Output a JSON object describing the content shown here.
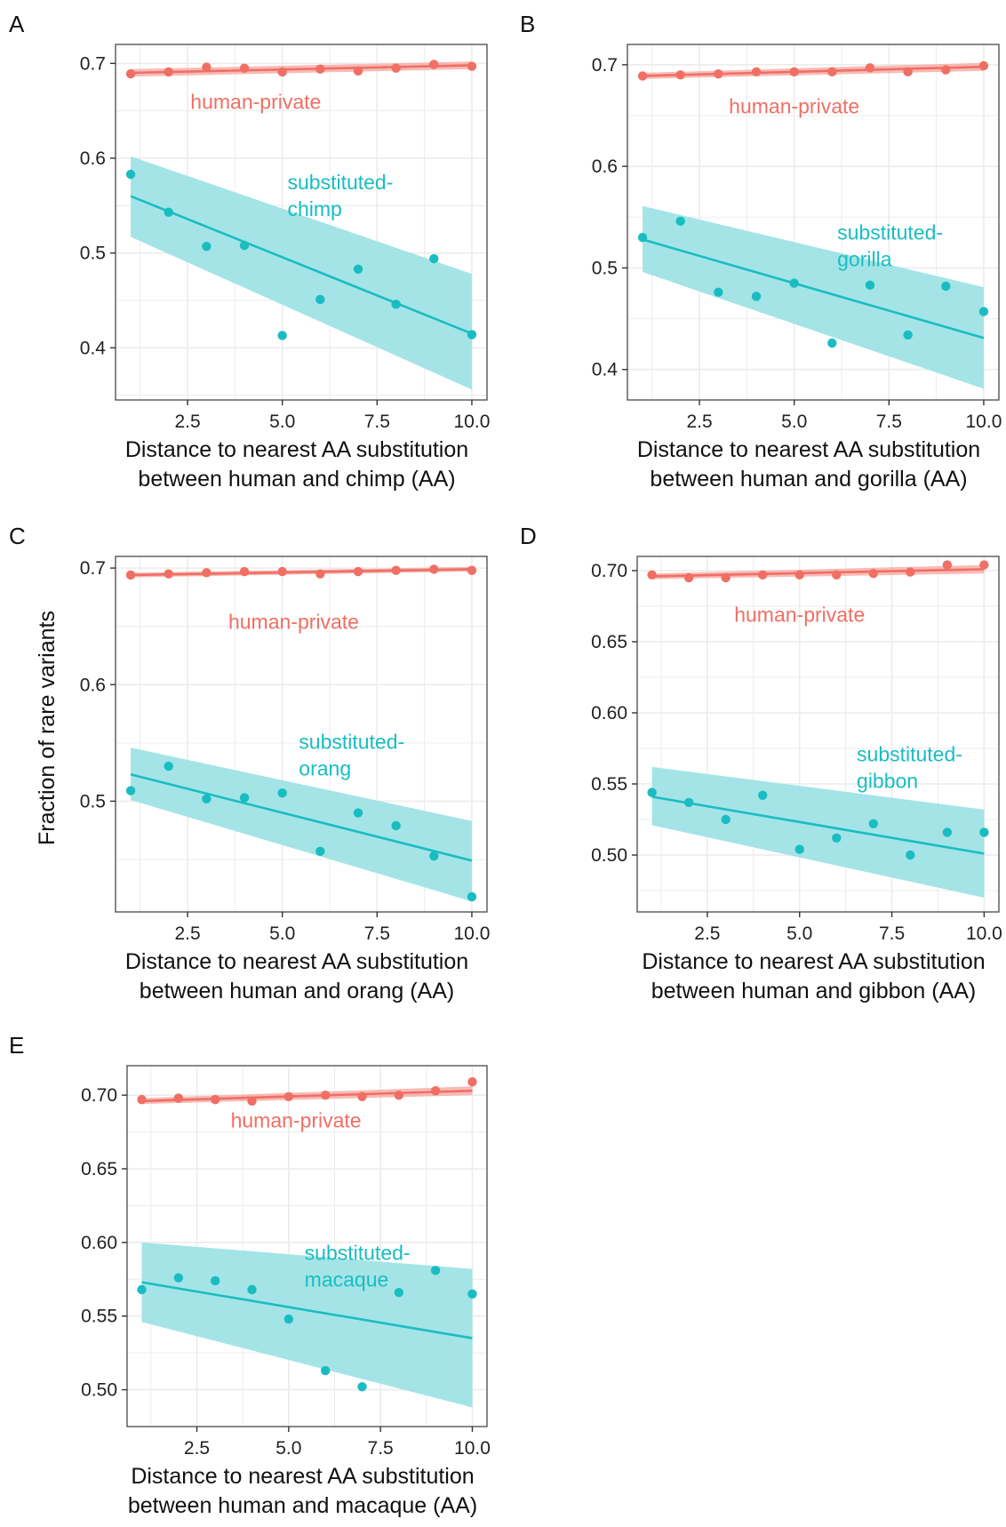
{
  "colors": {
    "human_private": "#f06f64",
    "substituted": "#19bdc1",
    "band_hp": "#f6aaa4",
    "band_sub": "#9fe3e6",
    "grid": "#ececec",
    "frame": "#555555"
  },
  "ylabel": "Fraction of rare variants",
  "chart_data": [
    {
      "panel": "A",
      "type": "scatter",
      "xlabel": [
        "Distance to nearest AA substitution",
        "between human and chimp (AA)"
      ],
      "xlim": [
        0.6,
        10.4
      ],
      "ylim": [
        0.345,
        0.72
      ],
      "xticks": [
        2.5,
        5.0,
        7.5,
        10.0
      ],
      "xtick_labels": [
        "2.5",
        "5.0",
        "7.5",
        "10.0"
      ],
      "yticks": [
        0.4,
        0.5,
        0.6,
        0.7
      ],
      "ytick_labels": [
        "0.4",
        "0.5",
        "0.6",
        "0.7"
      ],
      "x": [
        1,
        2,
        3,
        4,
        5,
        6,
        7,
        8,
        9,
        10
      ],
      "series": [
        {
          "name": "human-private",
          "label_lines": [
            "human-private"
          ],
          "label_anchor": [
            4.3,
            0.652
          ],
          "values": [
            0.689,
            0.691,
            0.696,
            0.695,
            0.691,
            0.694,
            0.692,
            0.695,
            0.699,
            0.697
          ],
          "fit": [
            0.69,
            0.698
          ],
          "band": [
            [
              0.686,
              0.694
            ],
            [
              0.694,
              0.702
            ]
          ]
        },
        {
          "name": "substituted-chimp",
          "label_lines": [
            "substituted-",
            "chimp"
          ],
          "label_anchor": [
            8.4,
            0.567
          ],
          "values": [
            0.583,
            0.543,
            0.507,
            0.508,
            0.413,
            0.451,
            0.483,
            0.446,
            0.494,
            0.414
          ],
          "fit": [
            0.56,
            0.415
          ],
          "band": [
            [
              0.517,
              0.602
            ],
            [
              0.356,
              0.478
            ]
          ]
        }
      ]
    },
    {
      "panel": "B",
      "type": "scatter",
      "xlabel": [
        "Distance to nearest AA substitution",
        "between human and gorilla (AA)"
      ],
      "xlim": [
        0.6,
        10.4
      ],
      "ylim": [
        0.37,
        0.72
      ],
      "xticks": [
        2.5,
        5.0,
        7.5,
        10.0
      ],
      "xtick_labels": [
        "2.5",
        "5.0",
        "7.5",
        "10.0"
      ],
      "yticks": [
        0.4,
        0.5,
        0.6,
        0.7
      ],
      "ytick_labels": [
        "0.4",
        "0.5",
        "0.6",
        "0.7"
      ],
      "x": [
        1,
        2,
        3,
        4,
        5,
        6,
        7,
        8,
        9,
        10
      ],
      "series": [
        {
          "name": "human-private",
          "label_lines": [
            "human-private"
          ],
          "label_anchor": [
            5.0,
            0.652
          ],
          "values": [
            0.689,
            0.69,
            0.691,
            0.693,
            0.693,
            0.693,
            0.697,
            0.693,
            0.695,
            0.699
          ],
          "fit": [
            0.689,
            0.698
          ],
          "band": [
            [
              0.686,
              0.692
            ],
            [
              0.694,
              0.702
            ]
          ]
        },
        {
          "name": "substituted-gorilla",
          "label_lines": [
            "substituted-",
            "gorilla"
          ],
          "label_anchor": [
            9.4,
            0.528
          ],
          "values": [
            0.53,
            0.546,
            0.476,
            0.472,
            0.485,
            0.426,
            0.483,
            0.434,
            0.482,
            0.457
          ],
          "fit": [
            0.528,
            0.431
          ],
          "band": [
            [
              0.496,
              0.561
            ],
            [
              0.381,
              0.481
            ]
          ]
        }
      ]
    },
    {
      "panel": "C",
      "type": "scatter",
      "xlabel": [
        "Distance to nearest AA substitution",
        "between human and orang (AA)"
      ],
      "xlim": [
        0.6,
        10.4
      ],
      "ylim": [
        0.405,
        0.71
      ],
      "xticks": [
        2.5,
        5.0,
        7.5,
        10.0
      ],
      "xtick_labels": [
        "2.5",
        "5.0",
        "7.5",
        "10.0"
      ],
      "yticks": [
        0.5,
        0.6,
        0.7
      ],
      "ytick_labels": [
        "0.5",
        "0.6",
        "0.7"
      ],
      "x": [
        1,
        2,
        3,
        4,
        5,
        6,
        7,
        8,
        9,
        10
      ],
      "series": [
        {
          "name": "human-private",
          "label_lines": [
            "human-private"
          ],
          "label_anchor": [
            5.3,
            0.648
          ],
          "values": [
            0.694,
            0.695,
            0.696,
            0.697,
            0.697,
            0.695,
            0.697,
            0.698,
            0.699,
            0.698
          ],
          "fit": [
            0.694,
            0.699
          ],
          "band": [
            [
              0.692,
              0.696
            ],
            [
              0.697,
              0.701
            ]
          ]
        },
        {
          "name": "substituted-orang",
          "label_lines": [
            "substituted-",
            "orang"
          ],
          "label_anchor": [
            8.7,
            0.545
          ],
          "values": [
            0.509,
            0.53,
            0.502,
            0.503,
            0.507,
            0.457,
            0.49,
            0.479,
            0.453,
            0.418
          ],
          "fit": [
            0.523,
            0.449
          ],
          "band": [
            [
              0.501,
              0.546
            ],
            [
              0.414,
              0.483
            ]
          ]
        }
      ]
    },
    {
      "panel": "D",
      "type": "scatter",
      "xlabel": [
        "Distance to nearest AA substitution",
        "between human and gibbon (AA)"
      ],
      "xlim": [
        0.6,
        10.4
      ],
      "ylim": [
        0.46,
        0.71
      ],
      "xticks": [
        2.5,
        5.0,
        7.5,
        10.0
      ],
      "xtick_labels": [
        "2.5",
        "5.0",
        "7.5",
        "10.0"
      ],
      "yticks": [
        0.5,
        0.55,
        0.6,
        0.65,
        0.7
      ],
      "ytick_labels": [
        "0.50",
        "0.55",
        "0.60",
        "0.65",
        "0.70"
      ],
      "x": [
        1,
        2,
        3,
        4,
        5,
        6,
        7,
        8,
        9,
        10
      ],
      "series": [
        {
          "name": "human-private",
          "label_lines": [
            "human-private"
          ],
          "label_anchor": [
            5.0,
            0.664
          ],
          "values": [
            0.697,
            0.695,
            0.695,
            0.697,
            0.697,
            0.697,
            0.698,
            0.699,
            0.704,
            0.704
          ],
          "fit": [
            0.696,
            0.701
          ],
          "band": [
            [
              0.694,
              0.698
            ],
            [
              0.698,
              0.704
            ]
          ]
        },
        {
          "name": "substituted-gibbon",
          "label_lines": [
            "substituted-",
            "gibbon"
          ],
          "label_anchor": [
            9.9,
            0.566
          ],
          "values": [
            0.544,
            0.537,
            0.525,
            0.542,
            0.504,
            0.512,
            0.522,
            0.5,
            0.516,
            0.516
          ],
          "fit": [
            0.541,
            0.501
          ],
          "band": [
            [
              0.521,
              0.562
            ],
            [
              0.47,
              0.532
            ]
          ]
        }
      ]
    },
    {
      "panel": "E",
      "type": "scatter",
      "xlabel": [
        "Distance to nearest AA substitution",
        "between human and macaque (AA)"
      ],
      "xlim": [
        0.6,
        10.4
      ],
      "ylim": [
        0.475,
        0.72
      ],
      "xticks": [
        2.5,
        5.0,
        7.5,
        10.0
      ],
      "xtick_labels": [
        "2.5",
        "5.0",
        "7.5",
        "10.0"
      ],
      "yticks": [
        0.5,
        0.55,
        0.6,
        0.65,
        0.7
      ],
      "ytick_labels": [
        "0.50",
        "0.55",
        "0.60",
        "0.65",
        "0.70"
      ],
      "x": [
        1,
        2,
        3,
        4,
        5,
        6,
        7,
        8,
        9,
        10
      ],
      "series": [
        {
          "name": "human-private",
          "label_lines": [
            "human-private"
          ],
          "label_anchor": [
            5.2,
            0.678
          ],
          "values": [
            0.697,
            0.698,
            0.697,
            0.696,
            0.699,
            0.7,
            0.699,
            0.7,
            0.703,
            0.709
          ],
          "fit": [
            0.696,
            0.703
          ],
          "band": [
            [
              0.694,
              0.698
            ],
            [
              0.7,
              0.706
            ]
          ]
        },
        {
          "name": "substituted-macaque",
          "label_lines": [
            "substituted-",
            "macaque"
          ],
          "label_anchor": [
            8.8,
            0.588
          ],
          "values": [
            0.568,
            0.576,
            0.574,
            0.568,
            0.548,
            0.513,
            0.502,
            0.566,
            0.581,
            0.565
          ],
          "fit": [
            0.573,
            0.535
          ],
          "band": [
            [
              0.546,
              0.6
            ],
            [
              0.488,
              0.582
            ]
          ]
        }
      ]
    }
  ]
}
